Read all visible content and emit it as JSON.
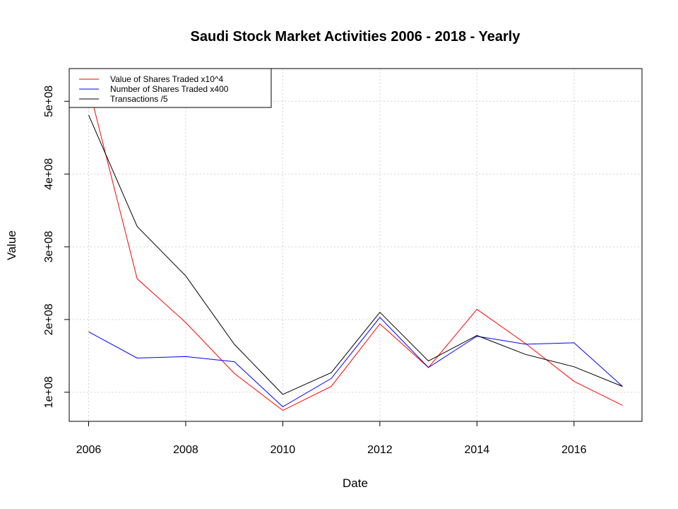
{
  "chart_data": {
    "type": "line",
    "title": "Saudi Stock Market Activities 2006 - 2018 - Yearly",
    "xlabel": "Date",
    "ylabel": "Value",
    "x": [
      2006,
      2007,
      2008,
      2009,
      2010,
      2011,
      2012,
      2013,
      2014,
      2015,
      2016,
      2017
    ],
    "xlim": [
      2005.6,
      2017.4
    ],
    "ylim": [
      60000000,
      545000000
    ],
    "x_ticks": [
      2006,
      2008,
      2010,
      2012,
      2014,
      2016
    ],
    "x_tick_labels": [
      "2006",
      "2008",
      "2010",
      "2012",
      "2014",
      "2016"
    ],
    "y_ticks": [
      100000000,
      200000000,
      300000000,
      400000000,
      500000000
    ],
    "y_tick_labels": [
      "1e+08",
      "2e+08",
      "3e+08",
      "4e+08",
      "5e+08"
    ],
    "grid": true,
    "legend_position": "top-left",
    "series": [
      {
        "name": "Value of Shares Traded x10^4",
        "color": "#ff0000",
        "values": [
          520000000,
          256000000,
          196000000,
          126000000,
          75000000,
          108000000,
          194000000,
          134000000,
          214000000,
          167000000,
          115000000,
          82000000
        ]
      },
      {
        "name": "Number of Shares Traded x400",
        "color": "#0000ff",
        "values": [
          183000000,
          147000000,
          149000000,
          142000000,
          80000000,
          119000000,
          203000000,
          134000000,
          177000000,
          166000000,
          168000000,
          108000000
        ]
      },
      {
        "name": "Transactions /5",
        "color": "#000000",
        "values": [
          481000000,
          328000000,
          260000000,
          166000000,
          97000000,
          127000000,
          210000000,
          143000000,
          178000000,
          152000000,
          135000000,
          108000000
        ]
      }
    ]
  }
}
